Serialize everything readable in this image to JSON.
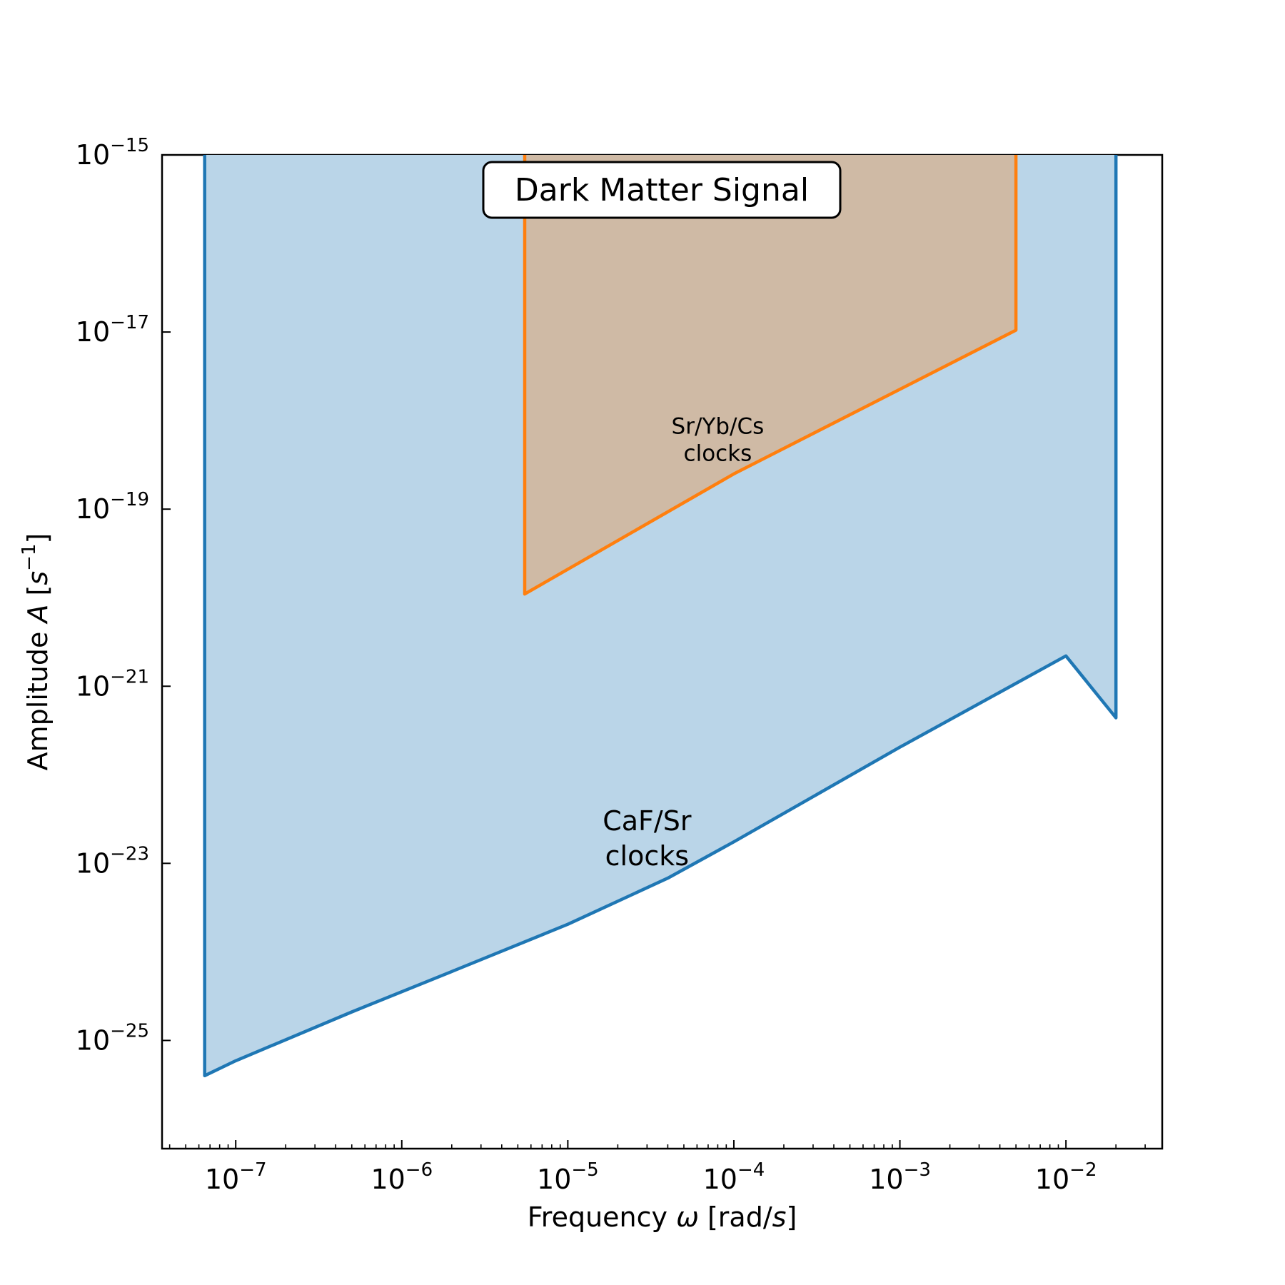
{
  "chart_data": {
    "type": "area",
    "title": "Dark Matter Signal",
    "xlabel": {
      "main": "Frequency ",
      "symbol": "ω",
      "unit_open": " [rad/",
      "unit_var": "s",
      "unit_close": "]"
    },
    "ylabel": {
      "main": "Amplitude ",
      "symbol": "A",
      "unit_open": " [",
      "unit_var": "s",
      "unit_exp": "−1",
      "unit_close": "]"
    },
    "x_scale": "log",
    "y_scale": "log",
    "xlim": [
      3.6e-08,
      0.038
    ],
    "ylim": [
      6e-27,
      1e-15
    ],
    "x_ticks": [
      {
        "value": 1e-07,
        "base": "10",
        "exp": "−7"
      },
      {
        "value": 1e-06,
        "base": "10",
        "exp": "−6"
      },
      {
        "value": 1e-05,
        "base": "10",
        "exp": "−5"
      },
      {
        "value": 0.0001,
        "base": "10",
        "exp": "−4"
      },
      {
        "value": 0.001,
        "base": "10",
        "exp": "−3"
      },
      {
        "value": 0.01,
        "base": "10",
        "exp": "−2"
      }
    ],
    "y_ticks": [
      {
        "value": 1e-15,
        "base": "10",
        "exp": "−15"
      },
      {
        "value": 1e-17,
        "base": "10",
        "exp": "−17"
      },
      {
        "value": 1e-19,
        "base": "10",
        "exp": "−19"
      },
      {
        "value": 1e-21,
        "base": "10",
        "exp": "−21"
      },
      {
        "value": 1e-23,
        "base": "10",
        "exp": "−23"
      },
      {
        "value": 1e-25,
        "base": "10",
        "exp": "−25"
      }
    ],
    "grid": false,
    "legend": "none",
    "series": [
      {
        "label_lines": [
          "CaF/Sr",
          "clocks"
        ],
        "label_position": {
          "x": 3e-05,
          "y": 1.5e-23
        },
        "color": "#1f77b4",
        "fill": "#bad5e8",
        "boundary": [
          [
            6.5e-08,
            1e-15
          ],
          [
            6.5e-08,
            4e-26
          ],
          [
            1e-07,
            5.9e-26
          ],
          [
            5e-07,
            2.1e-25
          ],
          [
            2e-06,
            6e-25
          ],
          [
            1e-05,
            2.05e-24
          ],
          [
            4e-05,
            6.8e-24
          ],
          [
            0.0001,
            1.75e-23
          ],
          [
            0.001,
            2.05e-22
          ],
          [
            0.01,
            2.2e-21
          ],
          [
            0.02,
            4.4e-22
          ],
          [
            0.02,
            1e-15
          ]
        ]
      },
      {
        "label_lines": [
          "Sr/Yb/Cs",
          "clocks"
        ],
        "label_position": {
          "x": 8e-05,
          "y": 5e-19
        },
        "color": "#ff7f0e",
        "fill": "#cfbaa5",
        "boundary": [
          [
            5.5e-06,
            1e-15
          ],
          [
            5.5e-06,
            1.1e-20
          ],
          [
            0.0001,
            2.5e-19
          ],
          [
            0.005,
            1.05e-17
          ],
          [
            0.005,
            1e-15
          ]
        ]
      }
    ]
  }
}
